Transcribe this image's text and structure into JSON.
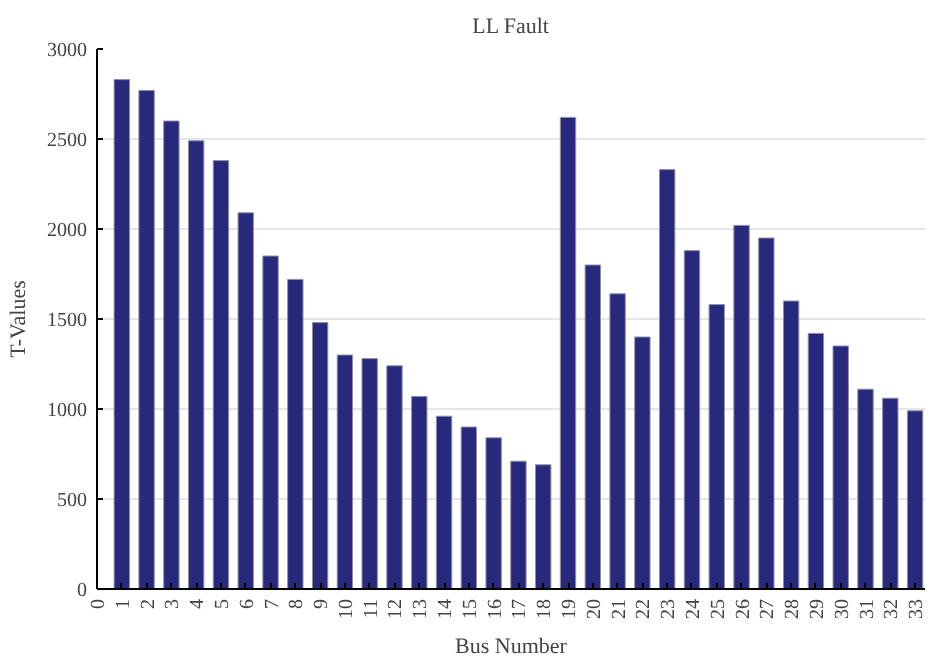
{
  "chart_data": {
    "type": "bar",
    "title": "LL Fault",
    "xlabel": "Bus Number",
    "ylabel": "T-Values",
    "x": [
      1,
      2,
      3,
      4,
      5,
      6,
      7,
      8,
      9,
      10,
      11,
      12,
      13,
      14,
      15,
      16,
      17,
      18,
      19,
      20,
      21,
      22,
      23,
      24,
      25,
      26,
      27,
      28,
      29,
      30,
      31,
      32,
      33
    ],
    "values": [
      2830,
      2770,
      2600,
      2490,
      2380,
      2090,
      1850,
      1720,
      1480,
      1300,
      1280,
      1240,
      1070,
      960,
      900,
      840,
      710,
      690,
      2620,
      1800,
      1640,
      1400,
      2330,
      1880,
      1580,
      2020,
      1950,
      1600,
      1420,
      1350,
      1110,
      1060,
      990
    ],
    "color": "#27297d",
    "xlim": [
      0,
      33.4
    ],
    "xticks": [
      0,
      1,
      2,
      3,
      4,
      5,
      6,
      7,
      8,
      9,
      10,
      11,
      12,
      13,
      14,
      15,
      16,
      17,
      18,
      19,
      20,
      21,
      22,
      23,
      24,
      25,
      26,
      27,
      28,
      29,
      30,
      31,
      32,
      33
    ],
    "ylim": [
      0,
      3000
    ],
    "yticks": [
      0,
      500,
      1000,
      1500,
      2000,
      2500,
      3000
    ],
    "grid": "y"
  }
}
